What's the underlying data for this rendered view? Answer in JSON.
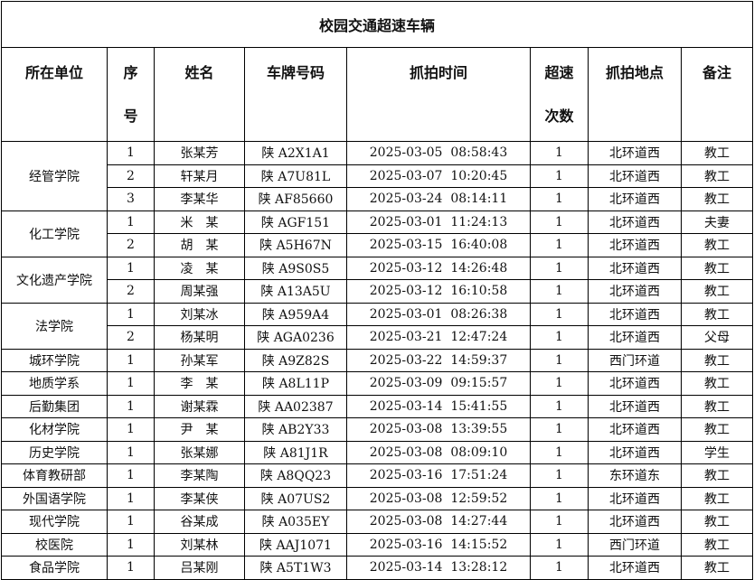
{
  "title": "校园交通超速车辆",
  "headers": [
    "所在单位",
    "序号",
    "姓名",
    "车牌号码",
    "抓拍时间",
    "超速次数",
    "抓拍地点",
    "备注"
  ],
  "groups": [
    {
      "unit": "经管学院",
      "rows": [
        [
          "1",
          "张某芳",
          "陕 A2X1A1",
          "2025-03-05  08:58:43",
          "1",
          "北环道西",
          "教工"
        ],
        [
          "2",
          "轩某月",
          "陕 A7U81L",
          "2025-03-07  10:20:45",
          "1",
          "北环道西",
          "教工"
        ],
        [
          "3",
          "李某华",
          "陕 AF85660",
          "2025-03-24  08:14:11",
          "1",
          "北环道西",
          "教工"
        ]
      ]
    },
    {
      "unit": "化工学院",
      "rows": [
        [
          "1",
          "米　某",
          "陕 AGF151",
          "2025-03-01  11:24:13",
          "1",
          "北环道西",
          "夫妻"
        ],
        [
          "2",
          "胡　某",
          "陕 A5H67N",
          "2025-03-15  16:40:08",
          "1",
          "北环道西",
          "教工"
        ]
      ]
    },
    {
      "unit": "文化遗产学院",
      "rows": [
        [
          "1",
          "凌　某",
          "陕 A9S0S5",
          "2025-03-12  14:26:48",
          "1",
          "北环道西",
          "教工"
        ],
        [
          "2",
          "周某强",
          "陕 A13A5U",
          "2025-03-12  16:10:58",
          "1",
          "北环道西",
          "教工"
        ]
      ]
    },
    {
      "unit": "法学院",
      "rows": [
        [
          "1",
          "刘某冰",
          "陕 A959A4",
          "2025-03-01  08:26:38",
          "1",
          "北环道西",
          "教工"
        ],
        [
          "2",
          "杨某明",
          "陕 AGA0236",
          "2025-03-21  12:47:24",
          "1",
          "北环道西",
          "父母"
        ]
      ]
    },
    {
      "unit": "城环学院",
      "rows": [
        [
          "1",
          "孙某军",
          "陕 A9Z82S",
          "2025-03-22  14:59:37",
          "1",
          "西门环道",
          "教工"
        ]
      ]
    },
    {
      "unit": "地质学系",
      "rows": [
        [
          "1",
          "李　某",
          "陕 A8L11P",
          "2025-03-09  09:15:57",
          "1",
          "北环道西",
          "教工"
        ]
      ]
    },
    {
      "unit": "后勤集团",
      "rows": [
        [
          "1",
          "谢某霖",
          "陕 AA02387",
          "2025-03-14  15:41:55",
          "1",
          "北环道西",
          "教工"
        ]
      ]
    },
    {
      "unit": "化材学院",
      "rows": [
        [
          "1",
          "尹　某",
          "陕 AB2Y33",
          "2025-03-08  13:39:55",
          "1",
          "北环道西",
          "教工"
        ]
      ]
    },
    {
      "unit": "历史学院",
      "rows": [
        [
          "1",
          "张某娜",
          "陕 A81J1R",
          "2025-03-08  08:09:10",
          "1",
          "北环道西",
          "学生"
        ]
      ]
    },
    {
      "unit": "体育教研部",
      "rows": [
        [
          "1",
          "李某陶",
          "陕 A8QQ23",
          "2025-03-16  17:51:24",
          "1",
          "东环道东",
          "教工"
        ]
      ]
    },
    {
      "unit": "外国语学院",
      "rows": [
        [
          "1",
          "李某侠",
          "陕 A07US2",
          "2025-03-08  12:59:52",
          "1",
          "北环道西",
          "教工"
        ]
      ]
    },
    {
      "unit": "现代学院",
      "rows": [
        [
          "1",
          "谷某成",
          "陕 A035EY",
          "2025-03-08  14:27:44",
          "1",
          "北环道西",
          "教工"
        ]
      ]
    },
    {
      "unit": "校医院",
      "rows": [
        [
          "1",
          "刘某林",
          "陕 AAJ1071",
          "2025-03-16  14:15:52",
          "1",
          "西门环道",
          "教工"
        ]
      ]
    },
    {
      "unit": "食品学院",
      "rows": [
        [
          "1",
          "吕某刚",
          "陕 A5T1W3",
          "2025-03-14  13:28:12",
          "1",
          "北环道西",
          "教工"
        ]
      ]
    }
  ]
}
